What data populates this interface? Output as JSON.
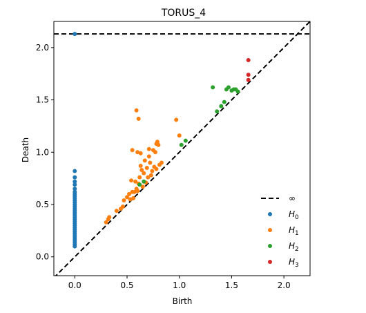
{
  "chart_data": {
    "type": "scatter",
    "title": "TORUS_4",
    "xlabel": "Birth",
    "ylabel": "Death",
    "xlim": [
      -0.2,
      2.25
    ],
    "ylim": [
      -0.18,
      2.25
    ],
    "xticks": [
      0.0,
      0.5,
      1.0,
      1.5,
      2.0
    ],
    "xtick_labels": [
      "0.0",
      "0.5",
      "1.0",
      "1.5",
      "2.0"
    ],
    "yticks": [
      0.0,
      0.5,
      1.0,
      1.5,
      2.0
    ],
    "ytick_labels": [
      "0.0",
      "0.5",
      "1.0",
      "1.5",
      "2.0"
    ],
    "grid": false,
    "diagonal": true,
    "infinity_line": {
      "y": 2.13,
      "label": "∞"
    },
    "legend_position": "lower-right",
    "series": [
      {
        "name": "H",
        "sub": "0",
        "color": "#1f77b4",
        "points": [
          [
            0,
            2.13
          ],
          [
            0,
            0.82
          ],
          [
            0,
            0.76
          ],
          [
            0,
            0.72
          ],
          [
            0,
            0.69
          ],
          [
            0,
            0.65
          ],
          [
            0,
            0.62
          ],
          [
            0,
            0.6
          ],
          [
            0,
            0.58
          ],
          [
            0,
            0.56
          ],
          [
            0,
            0.54
          ],
          [
            0,
            0.52
          ],
          [
            0,
            0.5
          ],
          [
            0,
            0.48
          ],
          [
            0,
            0.46
          ],
          [
            0,
            0.44
          ],
          [
            0,
            0.42
          ],
          [
            0,
            0.4
          ],
          [
            0,
            0.38
          ],
          [
            0,
            0.36
          ],
          [
            0,
            0.34
          ],
          [
            0,
            0.32
          ],
          [
            0,
            0.3
          ],
          [
            0,
            0.28
          ],
          [
            0,
            0.26
          ],
          [
            0,
            0.24
          ],
          [
            0,
            0.22
          ],
          [
            0,
            0.2
          ],
          [
            0,
            0.18
          ],
          [
            0,
            0.16
          ],
          [
            0,
            0.14
          ],
          [
            0,
            0.12
          ],
          [
            0,
            0.1
          ]
        ]
      },
      {
        "name": "H",
        "sub": "1",
        "color": "#ff7f0e",
        "points": [
          [
            0.3,
            0.33
          ],
          [
            0.32,
            0.36
          ],
          [
            0.33,
            0.38
          ],
          [
            0.4,
            0.44
          ],
          [
            0.44,
            0.46
          ],
          [
            0.46,
            0.48
          ],
          [
            0.47,
            0.54
          ],
          [
            0.5,
            0.57
          ],
          [
            0.52,
            0.6
          ],
          [
            0.53,
            0.55
          ],
          [
            0.54,
            0.73
          ],
          [
            0.55,
            0.62
          ],
          [
            0.56,
            0.56
          ],
          [
            0.57,
            0.62
          ],
          [
            0.58,
            0.72
          ],
          [
            0.59,
            0.65
          ],
          [
            0.6,
            0.63
          ],
          [
            0.61,
            0.7
          ],
          [
            0.62,
            0.76
          ],
          [
            0.63,
            0.87
          ],
          [
            0.64,
            0.83
          ],
          [
            0.65,
            0.67
          ],
          [
            0.66,
            0.8
          ],
          [
            0.67,
            0.92
          ],
          [
            0.68,
            0.71
          ],
          [
            0.69,
            0.85
          ],
          [
            0.7,
            0.76
          ],
          [
            0.71,
            0.96
          ],
          [
            0.72,
            0.9
          ],
          [
            0.73,
            0.78
          ],
          [
            0.74,
            0.82
          ],
          [
            0.75,
            1.02
          ],
          [
            0.76,
            0.86
          ],
          [
            0.77,
            1.0
          ],
          [
            0.78,
            0.84
          ],
          [
            0.79,
            1.1
          ],
          [
            0.8,
            1.07
          ],
          [
            0.81,
            0.88
          ],
          [
            0.83,
            0.9
          ],
          [
            0.55,
            1.02
          ],
          [
            0.6,
            1.0
          ],
          [
            0.63,
            0.99
          ],
          [
            0.71,
            1.03
          ],
          [
            0.78,
            1.08
          ],
          [
            0.59,
            1.4
          ],
          [
            0.61,
            1.32
          ],
          [
            0.97,
            1.31
          ],
          [
            1.0,
            1.16
          ]
        ]
      },
      {
        "name": "H",
        "sub": "2",
        "color": "#2ca02c",
        "points": [
          [
            0.62,
            0.69
          ],
          [
            0.66,
            0.72
          ],
          [
            1.02,
            1.07
          ],
          [
            1.06,
            1.11
          ],
          [
            1.32,
            1.62
          ],
          [
            1.36,
            1.39
          ],
          [
            1.4,
            1.44
          ],
          [
            1.43,
            1.48
          ],
          [
            1.45,
            1.6
          ],
          [
            1.47,
            1.62
          ],
          [
            1.5,
            1.59
          ],
          [
            1.52,
            1.6
          ],
          [
            1.54,
            1.6
          ],
          [
            1.56,
            1.58
          ]
        ]
      },
      {
        "name": "H",
        "sub": "3",
        "color": "#d62728",
        "points": [
          [
            1.66,
            1.88
          ],
          [
            1.66,
            1.74
          ],
          [
            1.66,
            1.69
          ]
        ]
      }
    ]
  }
}
